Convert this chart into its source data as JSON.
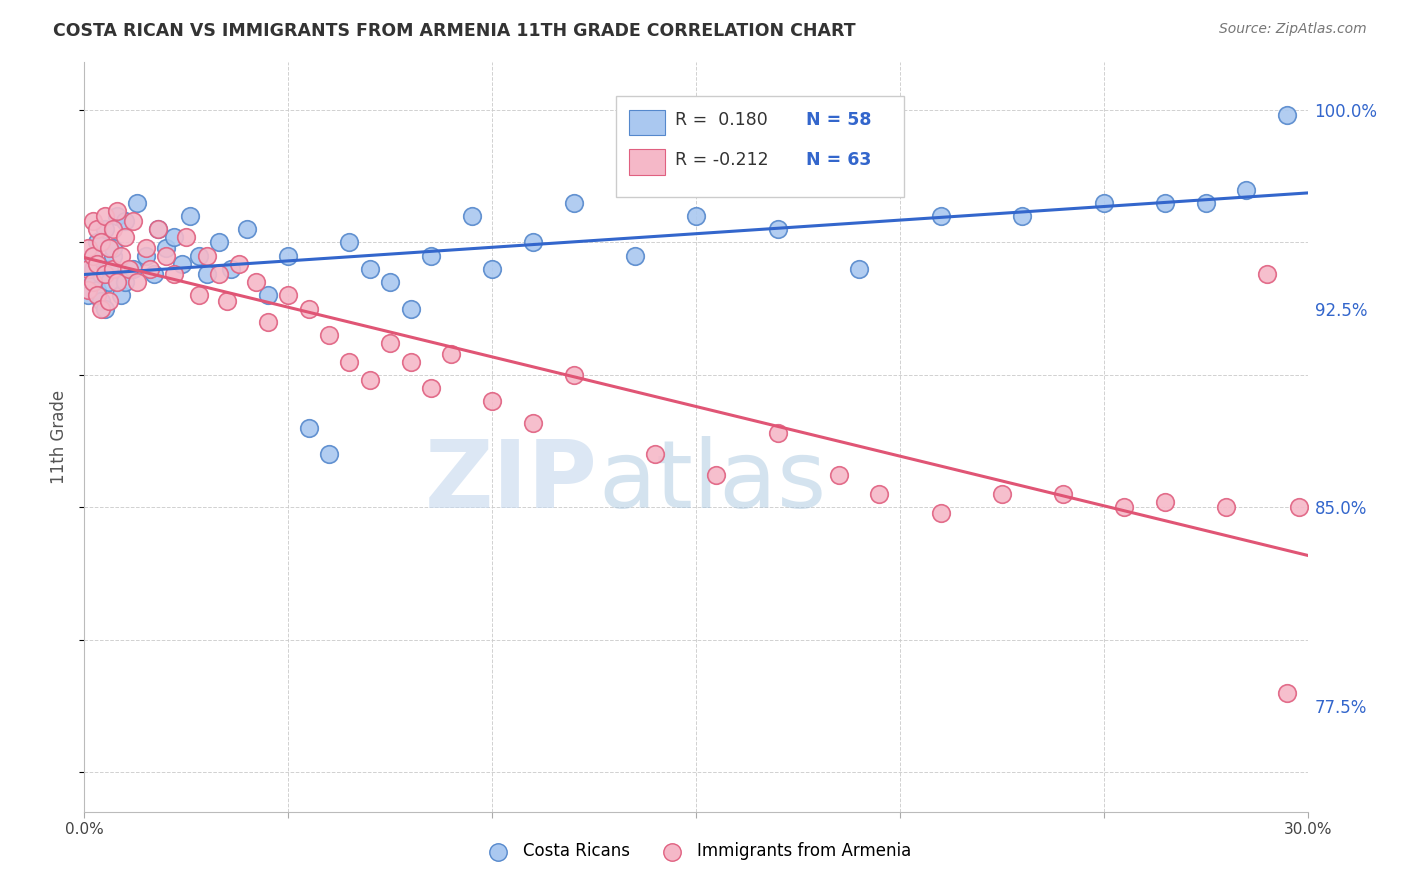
{
  "title": "COSTA RICAN VS IMMIGRANTS FROM ARMENIA 11TH GRADE CORRELATION CHART",
  "source": "Source: ZipAtlas.com",
  "ylabel": "11th Grade",
  "xmin": 0.0,
  "xmax": 0.3,
  "ymin": 0.735,
  "ymax": 1.018,
  "yticks": [
    0.775,
    0.85,
    0.925,
    1.0
  ],
  "ytick_labels": [
    "77.5%",
    "85.0%",
    "92.5%",
    "100.0%"
  ],
  "xticks": [
    0.0,
    0.05,
    0.1,
    0.15,
    0.2,
    0.25,
    0.3
  ],
  "xtick_labels": [
    "0.0%",
    "",
    "",
    "",
    "",
    "",
    "30.0%"
  ],
  "blue_R": 0.18,
  "blue_N": 58,
  "pink_R": -0.212,
  "pink_N": 63,
  "blue_color": "#aac8f0",
  "pink_color": "#f5b8c8",
  "blue_edge_color": "#5588cc",
  "pink_edge_color": "#e06080",
  "blue_line_color": "#3366cc",
  "pink_line_color": "#e05575",
  "watermark_zip": "ZIP",
  "watermark_atlas": "atlas",
  "blue_scatter_x": [
    0.001,
    0.001,
    0.001,
    0.002,
    0.002,
    0.002,
    0.003,
    0.003,
    0.004,
    0.004,
    0.005,
    0.005,
    0.006,
    0.006,
    0.007,
    0.007,
    0.008,
    0.009,
    0.01,
    0.01,
    0.012,
    0.013,
    0.015,
    0.017,
    0.018,
    0.02,
    0.022,
    0.024,
    0.026,
    0.028,
    0.03,
    0.033,
    0.036,
    0.04,
    0.045,
    0.05,
    0.055,
    0.06,
    0.065,
    0.07,
    0.075,
    0.08,
    0.085,
    0.095,
    0.1,
    0.11,
    0.12,
    0.135,
    0.15,
    0.17,
    0.19,
    0.21,
    0.23,
    0.25,
    0.265,
    0.275,
    0.285,
    0.295
  ],
  "blue_scatter_y": [
    0.937,
    0.93,
    0.942,
    0.935,
    0.945,
    0.94,
    0.932,
    0.95,
    0.938,
    0.928,
    0.955,
    0.925,
    0.94,
    0.935,
    0.945,
    0.948,
    0.96,
    0.93,
    0.958,
    0.935,
    0.94,
    0.965,
    0.945,
    0.938,
    0.955,
    0.948,
    0.952,
    0.942,
    0.96,
    0.945,
    0.938,
    0.95,
    0.94,
    0.955,
    0.93,
    0.945,
    0.88,
    0.87,
    0.95,
    0.94,
    0.935,
    0.925,
    0.945,
    0.96,
    0.94,
    0.95,
    0.965,
    0.945,
    0.96,
    0.955,
    0.94,
    0.96,
    0.96,
    0.965,
    0.965,
    0.965,
    0.97,
    0.998
  ],
  "pink_scatter_x": [
    0.001,
    0.001,
    0.001,
    0.002,
    0.002,
    0.002,
    0.003,
    0.003,
    0.003,
    0.004,
    0.004,
    0.005,
    0.005,
    0.006,
    0.006,
    0.007,
    0.007,
    0.008,
    0.008,
    0.009,
    0.01,
    0.011,
    0.012,
    0.013,
    0.015,
    0.016,
    0.018,
    0.02,
    0.022,
    0.025,
    0.028,
    0.03,
    0.033,
    0.035,
    0.038,
    0.042,
    0.045,
    0.05,
    0.055,
    0.06,
    0.065,
    0.07,
    0.075,
    0.08,
    0.085,
    0.09,
    0.1,
    0.11,
    0.12,
    0.14,
    0.155,
    0.17,
    0.185,
    0.195,
    0.21,
    0.225,
    0.24,
    0.255,
    0.265,
    0.28,
    0.29,
    0.295,
    0.298
  ],
  "pink_scatter_y": [
    0.948,
    0.94,
    0.932,
    0.945,
    0.958,
    0.935,
    0.955,
    0.942,
    0.93,
    0.95,
    0.925,
    0.96,
    0.938,
    0.948,
    0.928,
    0.955,
    0.94,
    0.962,
    0.935,
    0.945,
    0.952,
    0.94,
    0.958,
    0.935,
    0.948,
    0.94,
    0.955,
    0.945,
    0.938,
    0.952,
    0.93,
    0.945,
    0.938,
    0.928,
    0.942,
    0.935,
    0.92,
    0.93,
    0.925,
    0.915,
    0.905,
    0.898,
    0.912,
    0.905,
    0.895,
    0.908,
    0.89,
    0.882,
    0.9,
    0.87,
    0.862,
    0.878,
    0.862,
    0.855,
    0.848,
    0.855,
    0.855,
    0.85,
    0.852,
    0.85,
    0.938,
    0.78,
    0.85
  ]
}
